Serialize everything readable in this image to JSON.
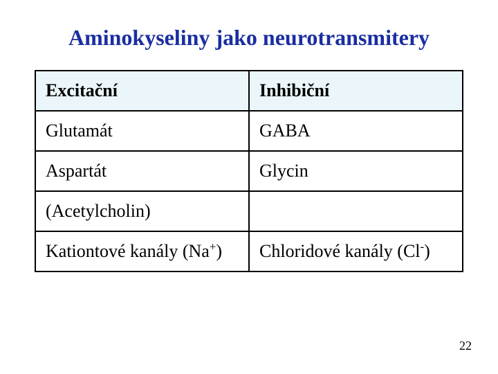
{
  "title": {
    "text": "Aminokyseliny jako neurotransmitery",
    "color": "#1a2ea0",
    "fontsize": 32
  },
  "table": {
    "header_bg": "#eaf6fa",
    "border_color": "#000000",
    "columns": [
      "Excitační",
      "Inhibiční"
    ],
    "rows": [
      {
        "left": "Glutamát",
        "right": "GABA"
      },
      {
        "left": "Aspartát",
        "right": "Glycin"
      },
      {
        "left": "(Acetylcholin)",
        "right": ""
      },
      {
        "left_base": "Kationtové kanály (Na",
        "left_sup": "+",
        "left_tail": ")",
        "right_base": "Chloridové kanály (Cl",
        "right_sup": "-",
        "right_tail": ")"
      }
    ]
  },
  "page_number": "22",
  "page_number_color": "#000000",
  "background_color": "#ffffff"
}
